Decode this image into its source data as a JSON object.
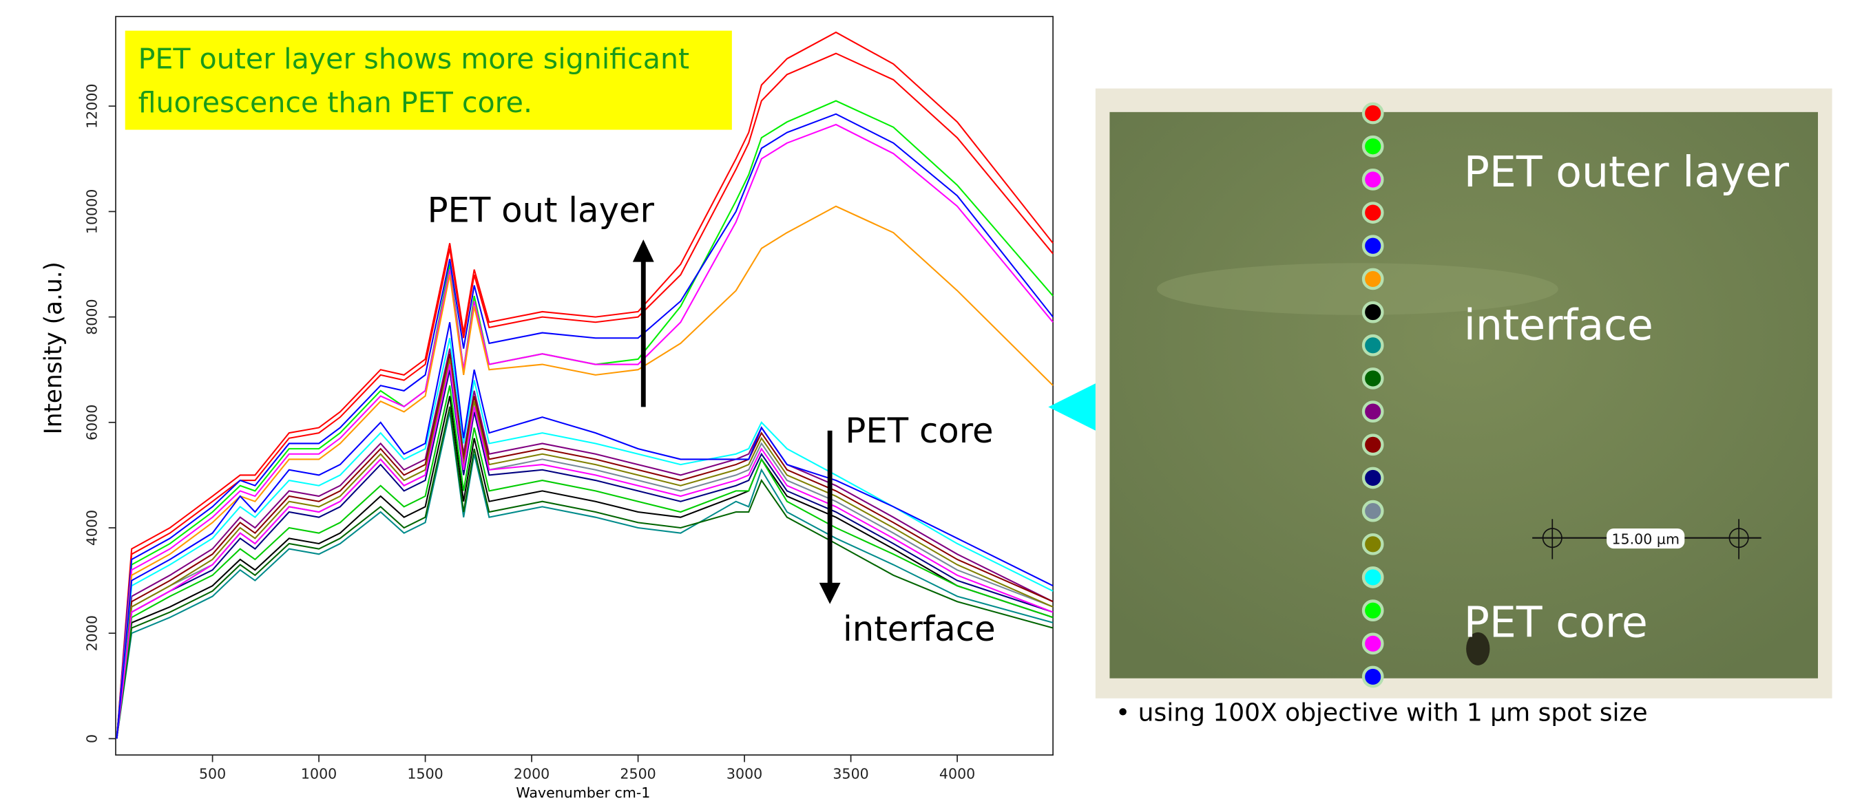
{
  "chart_data": {
    "type": "line",
    "y_label": "Intensity (a.u.)",
    "x_label": "Wavenumber cm-1",
    "annotation": [
      "PET outer layer shows more significant",
      "fluorescence than PET core."
    ],
    "arrow_labels": [
      "PET out layer",
      "PET core",
      "interface"
    ],
    "xlim": [
      45,
      4450
    ],
    "ylim": [
      -310,
      13700
    ],
    "xticks": [
      500,
      1000,
      1500,
      2000,
      2500,
      3000,
      3500,
      4000
    ],
    "yticks": [
      0,
      2000,
      4000,
      6000,
      8000,
      10000,
      12000
    ],
    "x": [
      50,
      120,
      300,
      500,
      630,
      700,
      860,
      1000,
      1100,
      1290,
      1400,
      1500,
      1615,
      1680,
      1730,
      1800,
      2050,
      2300,
      2500,
      2700,
      2960,
      3020,
      3080,
      3200,
      3430,
      3700,
      4000,
      4450
    ],
    "series": [
      {
        "color": "#ff0000",
        "values": [
          0,
          3600,
          4000,
          4600,
          5000,
          5000,
          5800,
          5900,
          6200,
          7000,
          6900,
          7200,
          9400,
          7700,
          8900,
          7900,
          8100,
          8000,
          8100,
          9000,
          11000,
          11500,
          12400,
          12900,
          13400,
          12800,
          11700,
          9400
        ]
      },
      {
        "color": "#ff0000",
        "values": [
          0,
          3500,
          3900,
          4500,
          4900,
          4900,
          5700,
          5800,
          6100,
          6900,
          6800,
          7100,
          9300,
          7600,
          8800,
          7800,
          8000,
          7900,
          8000,
          8800,
          10800,
          11300,
          12100,
          12600,
          13000,
          12500,
          11400,
          9200
        ]
      },
      {
        "color": "#00ee00",
        "values": [
          0,
          3300,
          3700,
          4300,
          4800,
          4700,
          5500,
          5500,
          5800,
          6600,
          6300,
          6600,
          9000,
          7000,
          8400,
          7100,
          7300,
          7100,
          7200,
          8200,
          10200,
          10700,
          11400,
          11700,
          12100,
          11600,
          10500,
          8400
        ]
      },
      {
        "color": "#0000ff",
        "values": [
          0,
          3400,
          3800,
          4400,
          4900,
          4800,
          5600,
          5600,
          5900,
          6700,
          6600,
          6900,
          9100,
          7400,
          8600,
          7500,
          7700,
          7600,
          7600,
          8300,
          10000,
          10600,
          11200,
          11500,
          11850,
          11300,
          10300,
          8000
        ]
      },
      {
        "color": "#ff00ff",
        "values": [
          0,
          3200,
          3600,
          4200,
          4700,
          4600,
          5400,
          5400,
          5700,
          6500,
          6300,
          6600,
          8900,
          7000,
          8300,
          7100,
          7300,
          7100,
          7100,
          7900,
          9800,
          10400,
          11000,
          11300,
          11650,
          11100,
          10100,
          7900
        ]
      },
      {
        "color": "#ff9900",
        "values": [
          0,
          3100,
          3500,
          4100,
          4600,
          4500,
          5300,
          5300,
          5600,
          6400,
          6200,
          6500,
          8800,
          6900,
          8200,
          7000,
          7100,
          6900,
          7000,
          7500,
          8500,
          8900,
          9300,
          9600,
          10100,
          9600,
          8500,
          6700
        ]
      },
      {
        "color": "#000000",
        "values": [
          0,
          2200,
          2500,
          2900,
          3400,
          3200,
          3800,
          3700,
          3900,
          4600,
          4200,
          4400,
          6500,
          4500,
          5700,
          4500,
          4700,
          4500,
          4300,
          4200,
          4600,
          4700,
          5300,
          4600,
          4200,
          3600,
          2900,
          2300
        ]
      },
      {
        "color": "#008b8b",
        "values": [
          0,
          2000,
          2300,
          2700,
          3200,
          3000,
          3600,
          3500,
          3700,
          4300,
          3900,
          4100,
          6200,
          4200,
          5400,
          4200,
          4400,
          4200,
          4000,
          3900,
          4500,
          4400,
          5100,
          4300,
          3800,
          3300,
          2700,
          2200
        ]
      },
      {
        "color": "#006400",
        "values": [
          0,
          2100,
          2400,
          2800,
          3300,
          3100,
          3700,
          3600,
          3800,
          4400,
          4000,
          4200,
          6300,
          4300,
          5500,
          4300,
          4500,
          4300,
          4100,
          4000,
          4300,
          4300,
          4900,
          4200,
          3700,
          3100,
          2600,
          2100
        ]
      },
      {
        "color": "#800080",
        "values": [
          0,
          2700,
          3100,
          3600,
          4200,
          4000,
          4700,
          4600,
          4800,
          5600,
          5100,
          5300,
          7400,
          5400,
          6600,
          5400,
          5600,
          5400,
          5200,
          5000,
          5300,
          5400,
          5900,
          5200,
          4800,
          4200,
          3500,
          2600
        ]
      },
      {
        "color": "#8b0000",
        "values": [
          0,
          2600,
          3000,
          3500,
          4100,
          3900,
          4600,
          4500,
          4700,
          5500,
          5000,
          5200,
          7300,
          5300,
          6500,
          5300,
          5500,
          5300,
          5100,
          4900,
          5200,
          5300,
          5800,
          5100,
          4700,
          4100,
          3400,
          2600
        ]
      },
      {
        "color": "#000080",
        "values": [
          0,
          2400,
          2800,
          3200,
          3800,
          3600,
          4300,
          4200,
          4400,
          5200,
          4700,
          4900,
          7000,
          5000,
          6200,
          5000,
          5100,
          4900,
          4700,
          4500,
          4800,
          4900,
          5400,
          4700,
          4300,
          3700,
          3000,
          2400
        ]
      },
      {
        "color": "#778899",
        "values": [
          0,
          2500,
          2900,
          3300,
          3900,
          3700,
          4400,
          4300,
          4500,
          5300,
          4800,
          5000,
          7100,
          5100,
          6300,
          5100,
          5300,
          5100,
          4900,
          4700,
          5000,
          5100,
          5600,
          4900,
          4500,
          3900,
          3200,
          2500
        ]
      },
      {
        "color": "#808000",
        "values": [
          0,
          2500,
          2900,
          3400,
          4000,
          3800,
          4500,
          4400,
          4600,
          5400,
          4900,
          5100,
          7200,
          5200,
          6400,
          5200,
          5400,
          5200,
          5000,
          4800,
          5100,
          5200,
          5700,
          5000,
          4600,
          4000,
          3300,
          2500
        ]
      },
      {
        "color": "#00ffff",
        "values": [
          0,
          2900,
          3300,
          3800,
          4400,
          4200,
          4900,
          4800,
          5000,
          5800,
          5300,
          5500,
          7600,
          5600,
          6800,
          5600,
          5800,
          5600,
          5400,
          5200,
          5400,
          5500,
          6000,
          5500,
          5000,
          4400,
          3700,
          2800
        ]
      },
      {
        "color": "#00cc00",
        "values": [
          0,
          2300,
          2700,
          3100,
          3600,
          3400,
          4000,
          3900,
          4100,
          4800,
          4400,
          4600,
          6700,
          4700,
          5900,
          4700,
          4900,
          4700,
          4500,
          4300,
          4700,
          4700,
          5300,
          4500,
          4000,
          3500,
          2900,
          2300
        ]
      },
      {
        "color": "#ff00ff",
        "values": [
          0,
          2400,
          2800,
          3300,
          3900,
          3700,
          4400,
          4300,
          4500,
          5300,
          4800,
          5000,
          7100,
          5100,
          6300,
          5100,
          5200,
          5000,
          4800,
          4600,
          4900,
          5000,
          5500,
          4800,
          4400,
          3800,
          3100,
          2400
        ]
      },
      {
        "color": "#0000ff",
        "values": [
          0,
          3000,
          3400,
          3900,
          4600,
          4300,
          5100,
          5000,
          5200,
          6000,
          5400,
          5600,
          7900,
          5700,
          7000,
          5800,
          6100,
          5800,
          5500,
          5300,
          5300,
          5300,
          5900,
          5200,
          4900,
          4400,
          3800,
          2900
        ]
      }
    ]
  },
  "micrograph": {
    "labels": [
      "PET outer layer",
      "interface",
      "PET core"
    ],
    "scale_bar": "15.00 µm",
    "caption": "• using 100X objective with 1 μm spot size"
  }
}
